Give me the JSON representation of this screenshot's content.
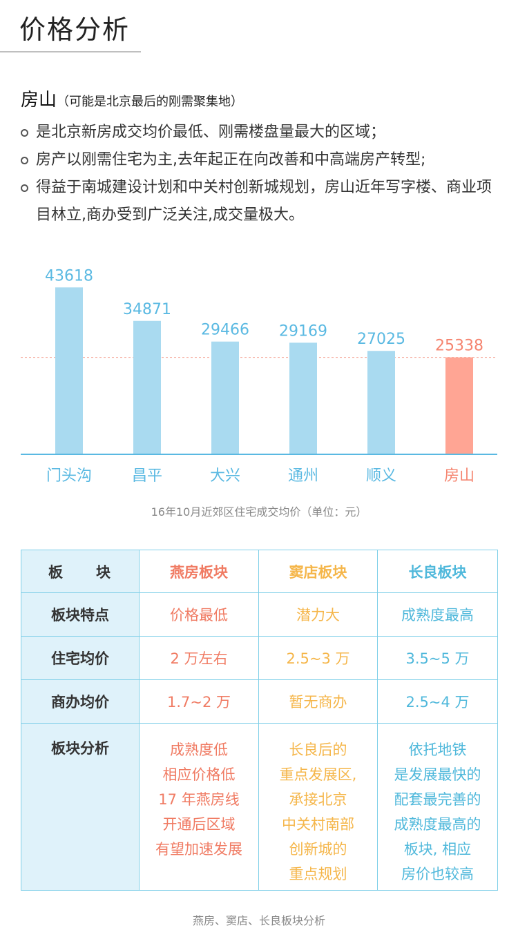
{
  "page_title": "价格分析",
  "section": {
    "heading": "房山",
    "subheading": "（可能是北京最后的刚需聚集地）",
    "bullets": [
      "是北京新房成交均价最低、刚需楼盘量最大的区域；",
      "房产以刚需住宅为主,去年起正在向改善和中高端房产转型;",
      "得益于南城建设计划和中关村创新城规划，房山近年写字楼、商业项目林立,商办受到广泛关注,成交量极大。"
    ]
  },
  "chart_data": {
    "type": "bar",
    "title": "16年10月近郊区住宅成交均价（单位：元）",
    "categories": [
      "门头沟",
      "昌平",
      "大兴",
      "通州",
      "顺义",
      "房山"
    ],
    "values": [
      43618,
      34871,
      29466,
      29169,
      27025,
      25338
    ],
    "highlight_index": 5,
    "reference_line": 25338,
    "ylim": [
      0,
      48000
    ],
    "grid": false,
    "colors": {
      "bar": "#a9daf0",
      "highlight": "#ffa594",
      "label": "#5ab9e2",
      "highlight_label": "#f5846f",
      "axis": "#5ab9e2",
      "reference": "#f5a090"
    }
  },
  "table": {
    "header_label": "板　　块",
    "columns": [
      "燕房板块",
      "窦店板块",
      "长良板块"
    ],
    "rows": [
      {
        "label": "板块特点",
        "cells": [
          "价格最低",
          "潜力大",
          "成熟度最高"
        ]
      },
      {
        "label": "住宅均价",
        "cells": [
          "2 万左右",
          "2.5~3 万",
          "3.5~5 万"
        ]
      },
      {
        "label": "商办均价",
        "cells": [
          "1.7~2 万",
          "暂无商办",
          "2.5~4 万"
        ]
      },
      {
        "label": "板块分析",
        "cells": [
          [
            "成熟度低",
            "相应价格低",
            "17 年燕房线",
            "开通后区域",
            "有望加速发展"
          ],
          [
            "长良后的",
            "重点发展区,",
            "承接北京",
            "中关村南部",
            "创新城的",
            "重点规划"
          ],
          [
            "依托地铁",
            "是发展最快的",
            "配套最完善的",
            "成熟度最高的",
            "板块, 相应",
            "房价也较高"
          ]
        ]
      }
    ],
    "caption": "燕房、窦店、长良板块分析"
  }
}
